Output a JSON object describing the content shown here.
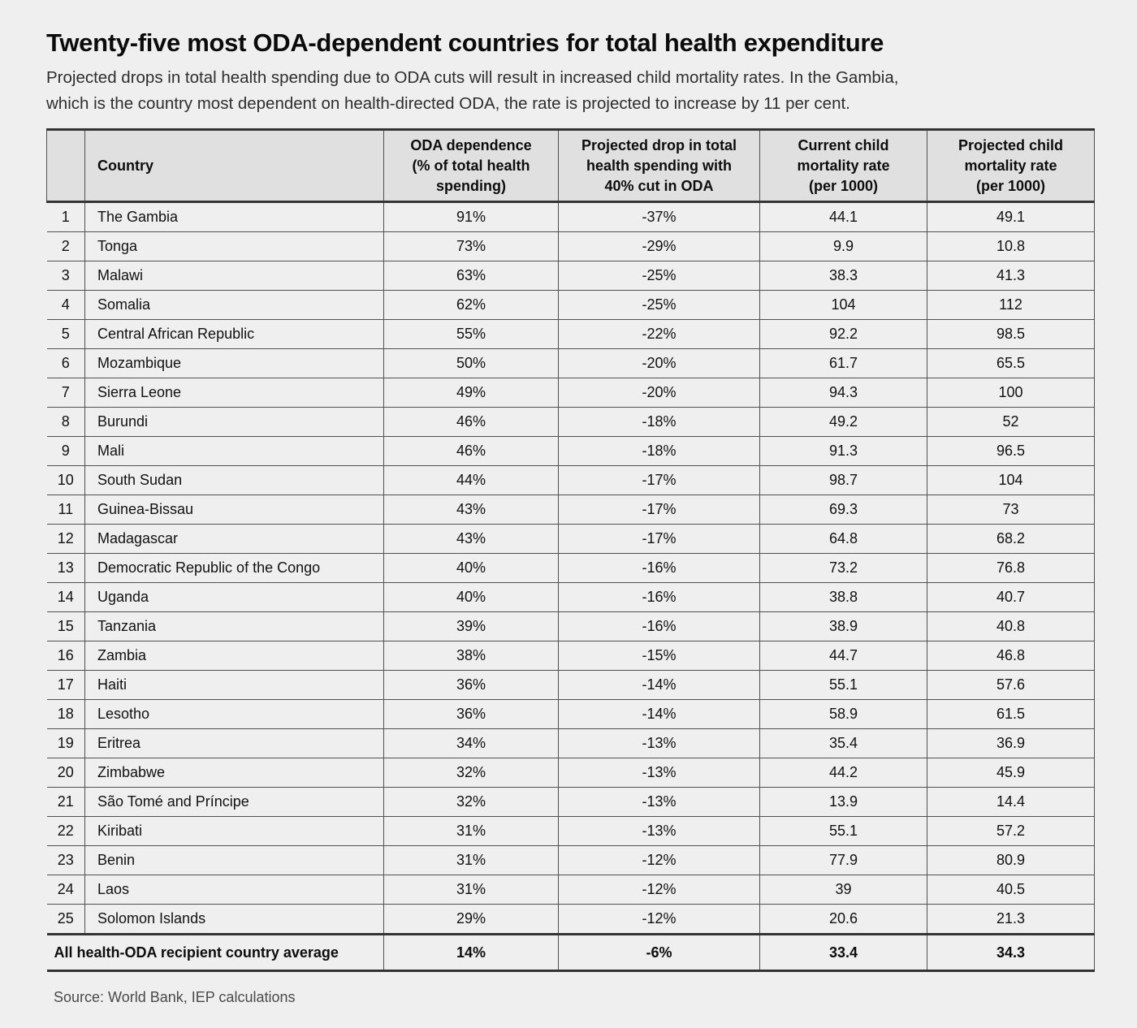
{
  "header": {
    "title": "Twenty-five most ODA-dependent countries for total health expenditure",
    "subtitle": "Projected drops in total health spending due to ODA cuts will result in increased child mortality rates. In the Gambia,\nwhich is the country most dependent on health-directed ODA, the rate is projected to increase by 11 per cent."
  },
  "chart_data": {
    "type": "table",
    "title": "Twenty-five most ODA-dependent countries for total health expenditure",
    "columns": [
      "",
      "Country",
      "ODA dependence\n(% of total health\nspending)",
      "Projected drop in total\nhealth spending with\n40% cut in ODA",
      "Current child\nmortality rate\n(per 1000)",
      "Projected child\nmortality rate\n(per 1000)"
    ],
    "rows": [
      {
        "rank": "1",
        "country": "The Gambia",
        "oda": "91%",
        "drop": "-37%",
        "current": "44.1",
        "projected": "49.1"
      },
      {
        "rank": "2",
        "country": "Tonga",
        "oda": "73%",
        "drop": "-29%",
        "current": "9.9",
        "projected": "10.8"
      },
      {
        "rank": "3",
        "country": "Malawi",
        "oda": "63%",
        "drop": "-25%",
        "current": "38.3",
        "projected": "41.3"
      },
      {
        "rank": "4",
        "country": "Somalia",
        "oda": "62%",
        "drop": "-25%",
        "current": "104",
        "projected": "112"
      },
      {
        "rank": "5",
        "country": "Central African Republic",
        "oda": "55%",
        "drop": "-22%",
        "current": "92.2",
        "projected": "98.5"
      },
      {
        "rank": "6",
        "country": "Mozambique",
        "oda": "50%",
        "drop": "-20%",
        "current": "61.7",
        "projected": "65.5"
      },
      {
        "rank": "7",
        "country": "Sierra Leone",
        "oda": "49%",
        "drop": "-20%",
        "current": "94.3",
        "projected": "100"
      },
      {
        "rank": "8",
        "country": "Burundi",
        "oda": "46%",
        "drop": "-18%",
        "current": "49.2",
        "projected": "52"
      },
      {
        "rank": "9",
        "country": "Mali",
        "oda": "46%",
        "drop": "-18%",
        "current": "91.3",
        "projected": "96.5"
      },
      {
        "rank": "10",
        "country": "South Sudan",
        "oda": "44%",
        "drop": "-17%",
        "current": "98.7",
        "projected": "104"
      },
      {
        "rank": "11",
        "country": "Guinea-Bissau",
        "oda": "43%",
        "drop": "-17%",
        "current": "69.3",
        "projected": "73"
      },
      {
        "rank": "12",
        "country": "Madagascar",
        "oda": "43%",
        "drop": "-17%",
        "current": "64.8",
        "projected": "68.2"
      },
      {
        "rank": "13",
        "country": "Democratic Republic of the Congo",
        "oda": "40%",
        "drop": "-16%",
        "current": "73.2",
        "projected": "76.8"
      },
      {
        "rank": "14",
        "country": "Uganda",
        "oda": "40%",
        "drop": "-16%",
        "current": "38.8",
        "projected": "40.7"
      },
      {
        "rank": "15",
        "country": "Tanzania",
        "oda": "39%",
        "drop": "-16%",
        "current": "38.9",
        "projected": "40.8"
      },
      {
        "rank": "16",
        "country": "Zambia",
        "oda": "38%",
        "drop": "-15%",
        "current": "44.7",
        "projected": "46.8"
      },
      {
        "rank": "17",
        "country": "Haiti",
        "oda": "36%",
        "drop": "-14%",
        "current": "55.1",
        "projected": "57.6"
      },
      {
        "rank": "18",
        "country": "Lesotho",
        "oda": "36%",
        "drop": "-14%",
        "current": "58.9",
        "projected": "61.5"
      },
      {
        "rank": "19",
        "country": "Eritrea",
        "oda": "34%",
        "drop": "-13%",
        "current": "35.4",
        "projected": "36.9"
      },
      {
        "rank": "20",
        "country": "Zimbabwe",
        "oda": "32%",
        "drop": "-13%",
        "current": "44.2",
        "projected": "45.9"
      },
      {
        "rank": "21",
        "country": "São Tomé and Príncipe",
        "oda": "32%",
        "drop": "-13%",
        "current": "13.9",
        "projected": "14.4"
      },
      {
        "rank": "22",
        "country": "Kiribati",
        "oda": "31%",
        "drop": "-13%",
        "current": "55.1",
        "projected": "57.2"
      },
      {
        "rank": "23",
        "country": "Benin",
        "oda": "31%",
        "drop": "-12%",
        "current": "77.9",
        "projected": "80.9"
      },
      {
        "rank": "24",
        "country": "Laos",
        "oda": "31%",
        "drop": "-12%",
        "current": "39",
        "projected": "40.5"
      },
      {
        "rank": "25",
        "country": "Solomon Islands",
        "oda": "29%",
        "drop": "-12%",
        "current": "20.6",
        "projected": "21.3"
      }
    ],
    "footer_row": {
      "label": "All health-ODA recipient country average",
      "oda": "14%",
      "drop": "-6%",
      "current": "33.4",
      "projected": "34.3"
    },
    "layout": {
      "grid": "ruled table, header band shaded",
      "legend_position": "none"
    }
  },
  "footer": {
    "source": "Source: World Bank, IEP calculations"
  },
  "colors": {
    "page_background": "#efefef",
    "header_band": "#e0e0e0",
    "thick_rule": "#333333",
    "thin_rule": "#4f4f4f",
    "text": "#111111",
    "subtitle_text": "#2e2e2e",
    "source_text": "#4a4a4a"
  }
}
